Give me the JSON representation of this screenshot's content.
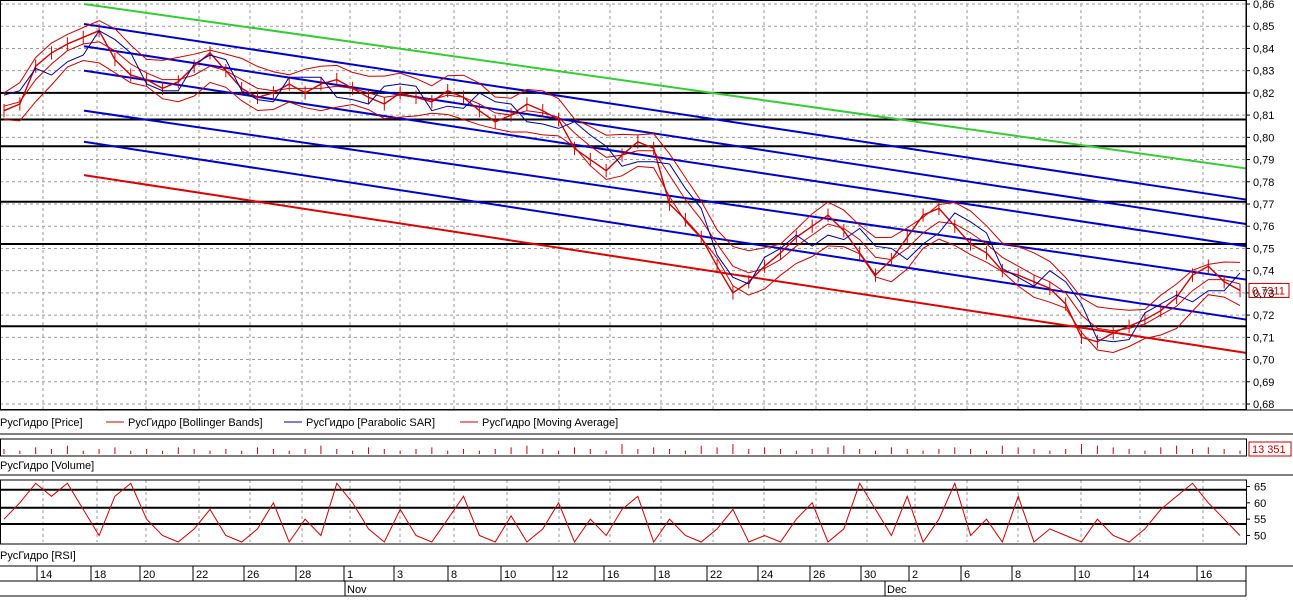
{
  "chart_data": [
    {
      "type": "line",
      "panel": "price",
      "ylim": [
        0.68,
        0.86
      ],
      "yticks": [
        "0,68",
        "0,69",
        "0,70",
        "0,71",
        "0,72",
        "0,73",
        "0,74",
        "0,75",
        "0,76",
        "0,77",
        "0,78",
        "0,79",
        "0,80",
        "0,81",
        "0,82",
        "0,83",
        "0,84",
        "0,85",
        "0,86"
      ],
      "grid": true,
      "current_value_label": "0,7311",
      "legend": [
        "РусГидро [Price]",
        "РусГидро [Bollinger Bands]",
        "РусГидро [Parabolic SAR]",
        "РусГидро [Moving Average]"
      ],
      "colors": {
        "price": "#cc0000",
        "bollinger": "#cc0000",
        "sar": "#000099",
        "ma": "#cc0000",
        "channel": "#0000cc",
        "upper_trend": "#33cc33",
        "lower_trend": "#dd0000",
        "levels": "#000000"
      },
      "series": [
        {
          "name": "РусГидро [Price]",
          "values": [
            0.812,
            0.815,
            0.832,
            0.838,
            0.842,
            0.845,
            0.848,
            0.835,
            0.828,
            0.826,
            0.822,
            0.825,
            0.832,
            0.838,
            0.83,
            0.822,
            0.818,
            0.82,
            0.824,
            0.82,
            0.824,
            0.826,
            0.822,
            0.818,
            0.815,
            0.82,
            0.818,
            0.816,
            0.821,
            0.818,
            0.812,
            0.807,
            0.81,
            0.815,
            0.812,
            0.808,
            0.795,
            0.79,
            0.785,
            0.792,
            0.798,
            0.795,
            0.77,
            0.763,
            0.755,
            0.742,
            0.73,
            0.735,
            0.742,
            0.748,
            0.755,
            0.76,
            0.765,
            0.758,
            0.748,
            0.738,
            0.745,
            0.755,
            0.765,
            0.768,
            0.76,
            0.752,
            0.748,
            0.74,
            0.738,
            0.735,
            0.732,
            0.725,
            0.71,
            0.708,
            0.712,
            0.715,
            0.718,
            0.722,
            0.728,
            0.738,
            0.742,
            0.735,
            0.7311
          ]
        },
        {
          "name": "РусГидро [Moving Average]",
          "values": [
            0.814,
            0.816,
            0.826,
            0.833,
            0.839,
            0.842,
            0.843,
            0.839,
            0.833,
            0.829,
            0.826,
            0.826,
            0.828,
            0.832,
            0.83,
            0.826,
            0.822,
            0.821,
            0.822,
            0.822,
            0.822,
            0.823,
            0.822,
            0.82,
            0.818,
            0.819,
            0.818,
            0.817,
            0.819,
            0.818,
            0.815,
            0.811,
            0.81,
            0.812,
            0.811,
            0.809,
            0.802,
            0.796,
            0.791,
            0.792,
            0.794,
            0.794,
            0.783,
            0.772,
            0.763,
            0.752,
            0.742,
            0.739,
            0.741,
            0.745,
            0.751,
            0.756,
            0.761,
            0.759,
            0.754,
            0.746,
            0.745,
            0.75,
            0.757,
            0.762,
            0.761,
            0.757,
            0.752,
            0.746,
            0.742,
            0.738,
            0.735,
            0.73,
            0.72,
            0.714,
            0.713,
            0.714,
            0.716,
            0.72,
            0.724,
            0.731,
            0.736,
            0.736,
            0.734
          ]
        }
      ],
      "horizontal_levels": [
        0.82,
        0.808,
        0.796,
        0.771,
        0.752,
        0.715
      ],
      "trendlines": [
        {
          "kind": "upper_trend",
          "start": 0.86,
          "end": 0.786
        },
        {
          "kind": "channel",
          "start": 0.851,
          "end": 0.772
        },
        {
          "kind": "channel",
          "start": 0.841,
          "end": 0.761
        },
        {
          "kind": "channel",
          "start": 0.83,
          "end": 0.751
        },
        {
          "kind": "channel",
          "start": 0.812,
          "end": 0.736
        },
        {
          "kind": "channel",
          "start": 0.798,
          "end": 0.718
        },
        {
          "kind": "lower_trend",
          "start": 0.783,
          "end": 0.703
        }
      ]
    },
    {
      "type": "bar",
      "panel": "volume",
      "legend": [
        "РусГидро [Volume]"
      ],
      "current_value_label": "13 351",
      "values": [
        3,
        2,
        4,
        3,
        5,
        2,
        3,
        4,
        2,
        3,
        2,
        4,
        3,
        2,
        3,
        2,
        4,
        3,
        2,
        3,
        5,
        3,
        2,
        4,
        3,
        2,
        3,
        4,
        2,
        3,
        2,
        3,
        4,
        5,
        3,
        2,
        4,
        3,
        2,
        6,
        3,
        4,
        3,
        2,
        5,
        4,
        6,
        3,
        4,
        3,
        2,
        3,
        4,
        5,
        3,
        2,
        4,
        3,
        2,
        3,
        4,
        3,
        2,
        5,
        4,
        3,
        2,
        3,
        6,
        5,
        4,
        3,
        2,
        4,
        5,
        3,
        4,
        3,
        2
      ]
    },
    {
      "type": "line",
      "panel": "rsi",
      "legend": [
        "РусГидро [RSI]"
      ],
      "ylim": [
        48,
        67
      ],
      "yticks": [
        "50",
        "55",
        "60",
        "65"
      ],
      "horizontal_levels": [
        64,
        58.5,
        53.5
      ],
      "values": [
        55,
        60,
        66,
        62,
        66,
        58,
        50,
        62,
        66,
        55,
        50,
        48,
        52,
        58,
        50,
        48,
        52,
        60,
        48,
        55,
        50,
        66,
        60,
        52,
        48,
        58,
        50,
        48,
        55,
        62,
        50,
        48,
        56,
        48,
        52,
        60,
        48,
        55,
        50,
        58,
        62,
        48,
        55,
        50,
        48,
        52,
        58,
        48,
        50,
        48,
        55,
        60,
        48,
        52,
        66,
        58,
        50,
        62,
        48,
        55,
        66,
        50,
        55,
        48,
        62,
        48,
        52,
        50,
        48,
        55,
        50,
        48,
        52,
        58,
        62,
        66,
        60,
        55,
        50
      ]
    }
  ],
  "x_axis": {
    "day_labels": [
      "14",
      "18",
      "20",
      "22",
      "26",
      "28",
      "1",
      "3",
      "8",
      "10",
      "12",
      "16",
      "18",
      "22",
      "24",
      "26",
      "30",
      "2",
      "6",
      "8",
      "10",
      "14",
      "16"
    ],
    "month_labels": [
      "Nov",
      "Dec"
    ]
  }
}
